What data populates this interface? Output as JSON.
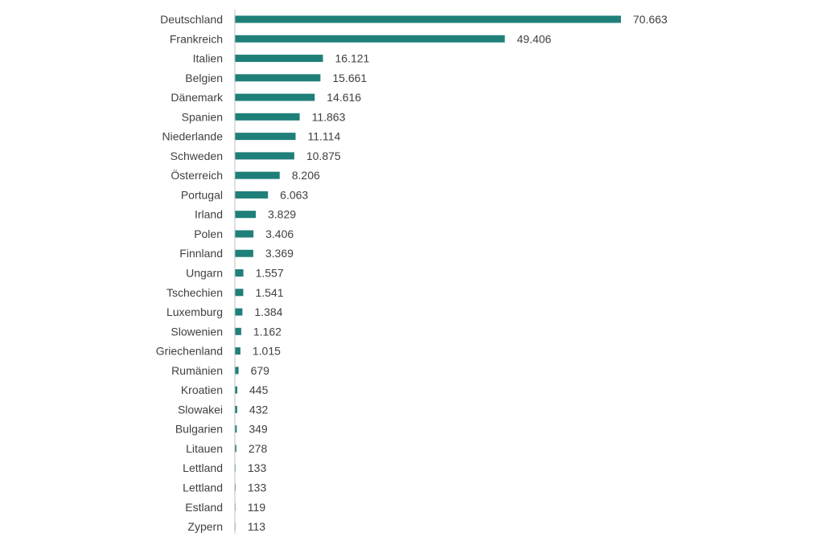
{
  "chart_data": {
    "type": "bar",
    "orientation": "horizontal",
    "title": "",
    "xlabel": "",
    "ylabel": "",
    "grid": false,
    "legend": "none",
    "bar_color": "#1F7F79",
    "axis_color": "#BFBFBF",
    "xlim": [
      0,
      70663
    ],
    "categories": [
      "Deutschland",
      "Frankreich",
      "Italien",
      "Belgien",
      "Dänemark",
      "Spanien",
      "Niederlande",
      "Schweden",
      "Österreich",
      "Portugal",
      "Irland",
      "Polen",
      "Finnland",
      "Ungarn",
      "Tschechien",
      "Luxemburg",
      "Slowenien",
      "Griechenland",
      "Rumänien",
      "Kroatien",
      "Slowakei",
      "Bulgarien",
      "Litauen",
      "Lettland",
      "Lettland",
      "Estland",
      "Zypern"
    ],
    "values": [
      70663,
      49406,
      16121,
      15661,
      14616,
      11863,
      11114,
      10875,
      8206,
      6063,
      3829,
      3406,
      3369,
      1557,
      1541,
      1384,
      1162,
      1015,
      679,
      445,
      432,
      349,
      278,
      133,
      133,
      119,
      113
    ],
    "value_labels": [
      "70.663",
      "49.406",
      "16.121",
      "15.661",
      "14.616",
      "11.863",
      "11.114",
      "10.875",
      "8.206",
      "6.063",
      "3.829",
      "3.406",
      "3.369",
      "1.557",
      "1.541",
      "1.384",
      "1.162",
      "1.015",
      "679",
      "445",
      "432",
      "349",
      "278",
      "133",
      "133",
      "119",
      "113"
    ]
  }
}
